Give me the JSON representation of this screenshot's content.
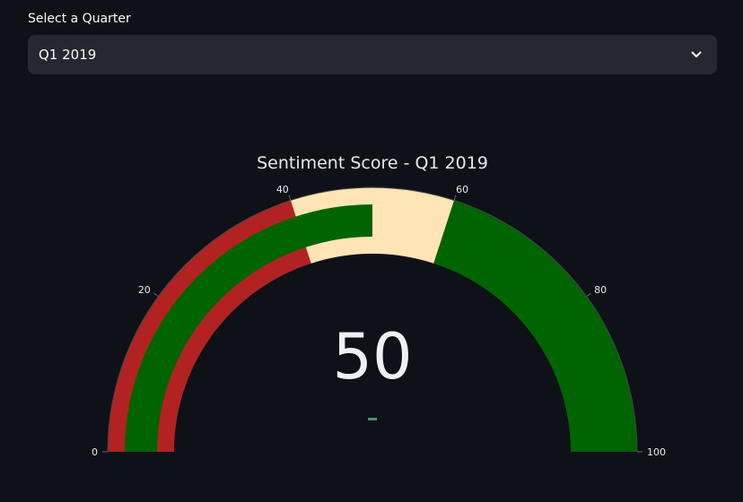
{
  "selector": {
    "label": "Select a Quarter",
    "value": "Q1 2019"
  },
  "chart_data": {
    "type": "gauge",
    "title": "Sentiment Score - Q1 2019",
    "value": 50,
    "range": [
      0,
      100
    ],
    "ticks": [
      0,
      20,
      40,
      60,
      80,
      100
    ],
    "bands": [
      {
        "from": 0,
        "to": 40,
        "color": "#b22222"
      },
      {
        "from": 40,
        "to": 60,
        "color": "#ffe4b5"
      },
      {
        "from": 60,
        "to": 100,
        "color": "#006400"
      }
    ],
    "bar_color": "#006400",
    "delta_color": "#3d9970"
  }
}
